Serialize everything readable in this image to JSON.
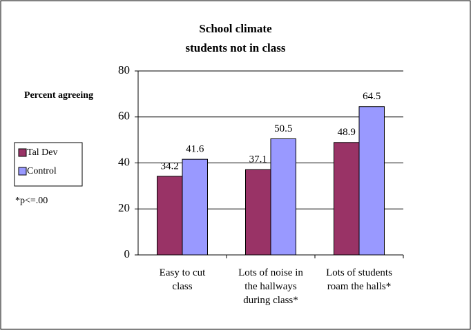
{
  "chart_data": {
    "type": "bar",
    "title": "School climate\nstudents not in class",
    "y_axis_label": "Percent agreeing",
    "annotation": "*p<=.00",
    "categories": [
      "Easy to cut\nclass",
      "Lots of noise in\nthe hallways\nduring class*",
      "Lots of students\nroam the halls*"
    ],
    "series": [
      {
        "name": "Tal Dev",
        "color": "#993366",
        "values": [
          34.2,
          37.1,
          48.9
        ]
      },
      {
        "name": "Control",
        "color": "#9999ff",
        "values": [
          41.6,
          50.5,
          64.5
        ]
      }
    ],
    "ylim": [
      0,
      80
    ],
    "yticks": [
      0,
      20,
      40,
      60,
      80
    ],
    "grid": true
  }
}
